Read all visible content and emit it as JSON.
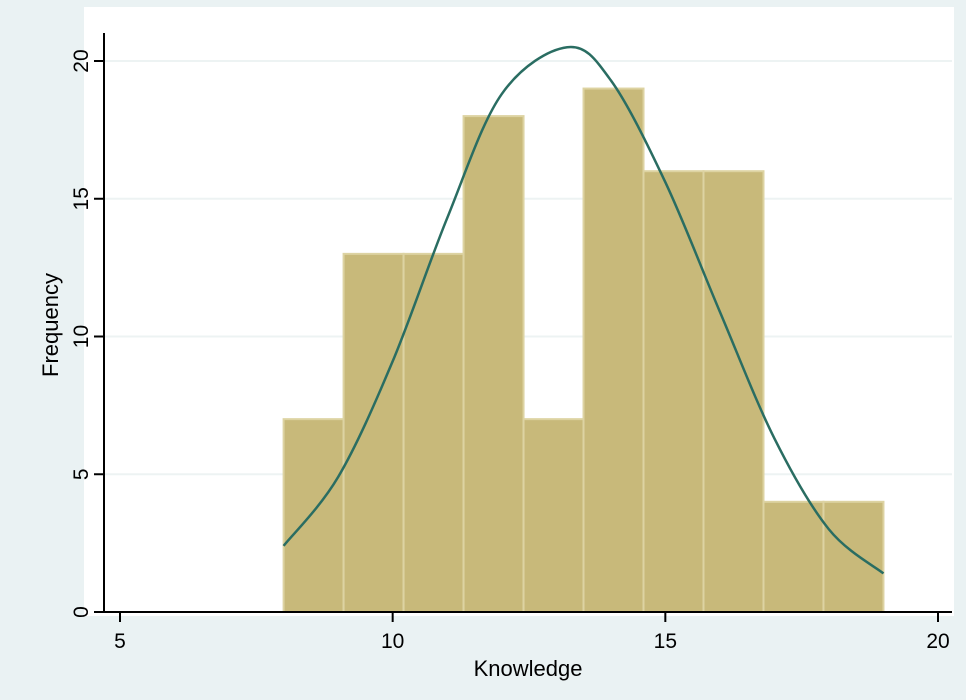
{
  "chart_data": {
    "type": "bar",
    "title": "",
    "xlabel": "Knowledge",
    "ylabel": "Frequency",
    "xlim": [
      5,
      20
    ],
    "ylim": [
      0,
      21
    ],
    "x_ticks": [
      "5",
      "10",
      "15",
      "20"
    ],
    "y_ticks": [
      "0",
      "5",
      "10",
      "15",
      "20"
    ],
    "grid": true,
    "legend": "none",
    "bins": [
      {
        "start": 8.0,
        "end": 9.1,
        "frequency": 7
      },
      {
        "start": 9.1,
        "end": 10.2,
        "frequency": 13
      },
      {
        "start": 10.2,
        "end": 11.3,
        "frequency": 13
      },
      {
        "start": 11.3,
        "end": 12.4,
        "frequency": 18
      },
      {
        "start": 12.4,
        "end": 13.5,
        "frequency": 7
      },
      {
        "start": 13.5,
        "end": 14.6,
        "frequency": 19
      },
      {
        "start": 14.6,
        "end": 15.7,
        "frequency": 16
      },
      {
        "start": 15.7,
        "end": 16.8,
        "frequency": 16
      },
      {
        "start": 16.8,
        "end": 17.9,
        "frequency": 4
      },
      {
        "start": 17.9,
        "end": 19.0,
        "frequency": 4
      }
    ],
    "normal_curve": {
      "points": [
        {
          "x": 8.0,
          "y": 2.4
        },
        {
          "x": 9.0,
          "y": 4.9
        },
        {
          "x": 10.0,
          "y": 9.1
        },
        {
          "x": 11.0,
          "y": 14.3
        },
        {
          "x": 12.0,
          "y": 18.8
        },
        {
          "x": 13.2,
          "y": 20.5
        },
        {
          "x": 14.0,
          "y": 19.3
        },
        {
          "x": 15.0,
          "y": 15.6
        },
        {
          "x": 16.0,
          "y": 10.9
        },
        {
          "x": 17.0,
          "y": 6.3
        },
        {
          "x": 18.0,
          "y": 3.0
        },
        {
          "x": 19.0,
          "y": 1.4
        }
      ]
    },
    "colors": {
      "bar_fill": "#c8b97a",
      "bar_edge": "#ddd3a2",
      "curve": "#2a6d62",
      "plot_bg": "#ffffff",
      "outer_bg": "#eaf2f3",
      "grid": "#edf3f3",
      "axis": "#000000"
    }
  }
}
